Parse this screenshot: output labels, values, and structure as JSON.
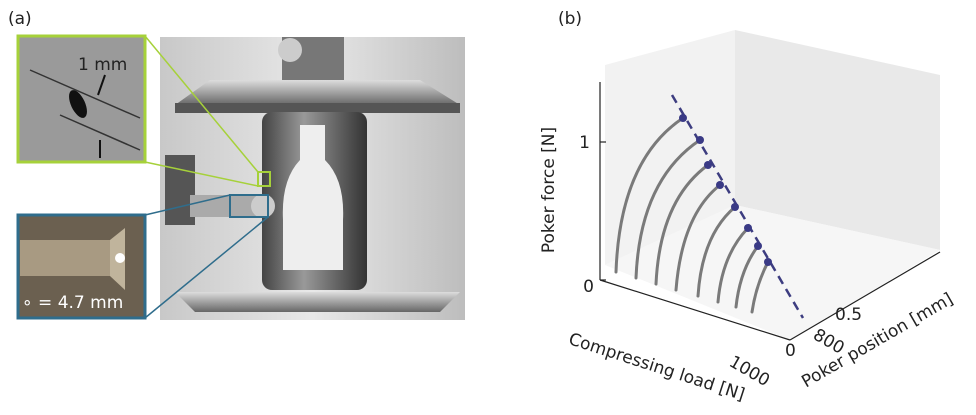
{
  "panel_a": {
    "label": "(a)",
    "inset_top_scale": "1 mm",
    "inset_bottom_scale": "∘ = 4.7 mm"
  },
  "panel_b": {
    "label": "(b)",
    "z_axis_title": "Poker force [N]",
    "x_axis_title": "Compressing load [N]",
    "y_axis_title": "Poker position [mm]",
    "z_ticks": [
      "1",
      "0"
    ],
    "x_ticks": [
      "800",
      "1000"
    ],
    "y_ticks": [
      "0.5",
      "0"
    ]
  }
}
